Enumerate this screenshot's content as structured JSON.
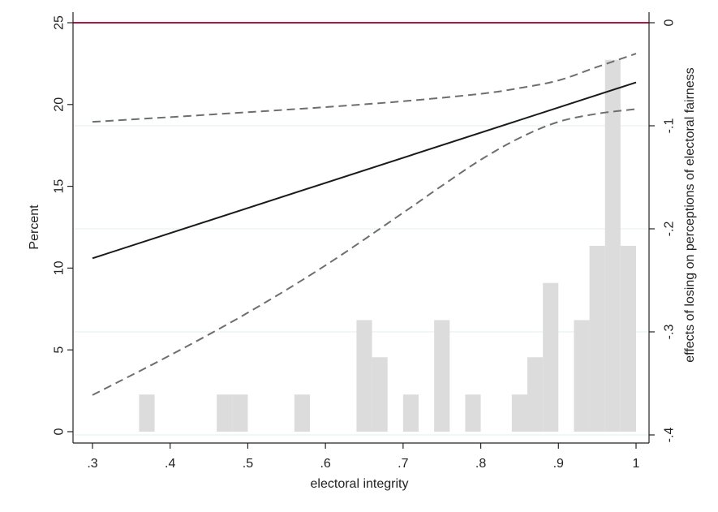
{
  "chart_data": {
    "type": "bar+line",
    "xlabel": "electoral integrity",
    "ylabel_left": "Percent",
    "ylabel_right": "effects of losing on perceptions of electoral fairness",
    "x_ticks": [
      ".3",
      ".4",
      ".5",
      ".6",
      ".7",
      ".8",
      ".9",
      "1"
    ],
    "x_tick_values": [
      0.3,
      0.4,
      0.5,
      0.6,
      0.7,
      0.8,
      0.9,
      1.0
    ],
    "left_ticks": [
      "0",
      "5",
      "10",
      "15",
      "20",
      "25"
    ],
    "left_tick_values": [
      0,
      5,
      10,
      15,
      20,
      25
    ],
    "right_ticks": [
      "0",
      "-.1",
      "-.2",
      "-.3",
      "-.4"
    ],
    "right_tick_values": [
      0,
      -0.1,
      -0.2,
      -0.3,
      -0.4
    ],
    "xlim": [
      0.3,
      1.0
    ],
    "ylim_left": [
      0,
      25
    ],
    "ylim_right": [
      -0.4,
      0
    ],
    "histogram": {
      "axis": "left",
      "bin_width": 0.02,
      "bins": [
        {
          "start": 0.36,
          "value": 2.27
        },
        {
          "start": 0.46,
          "value": 2.27
        },
        {
          "start": 0.48,
          "value": 2.27
        },
        {
          "start": 0.56,
          "value": 2.27
        },
        {
          "start": 0.64,
          "value": 6.82
        },
        {
          "start": 0.66,
          "value": 4.55
        },
        {
          "start": 0.7,
          "value": 2.27
        },
        {
          "start": 0.74,
          "value": 6.82
        },
        {
          "start": 0.78,
          "value": 2.27
        },
        {
          "start": 0.84,
          "value": 2.27
        },
        {
          "start": 0.86,
          "value": 4.55
        },
        {
          "start": 0.88,
          "value": 9.09
        },
        {
          "start": 0.92,
          "value": 6.82
        },
        {
          "start": 0.94,
          "value": 11.36
        },
        {
          "start": 0.96,
          "value": 22.73
        },
        {
          "start": 0.98,
          "value": 11.36
        }
      ]
    },
    "reference_line": {
      "axis": "right",
      "value": 0,
      "color": "#b0173e"
    },
    "estimate": {
      "axis": "right",
      "x": [
        0.3,
        1.0
      ],
      "y": [
        -0.2286,
        -0.0579
      ]
    },
    "ci_upper": {
      "axis": "right",
      "x": [
        0.3,
        0.4,
        0.5,
        0.6,
        0.7,
        0.8,
        0.85,
        0.9,
        0.95,
        1.0
      ],
      "y": [
        -0.0962,
        -0.0916,
        -0.0868,
        -0.0819,
        -0.0762,
        -0.069,
        -0.0634,
        -0.056,
        -0.0429,
        -0.03
      ]
    },
    "ci_lower": {
      "axis": "right",
      "x": [
        0.3,
        0.4,
        0.5,
        0.6,
        0.7,
        0.75,
        0.8,
        0.85,
        0.9,
        0.95,
        1.0
      ],
      "y": [
        -0.3613,
        -0.3227,
        -0.2814,
        -0.2355,
        -0.1844,
        -0.1582,
        -0.133,
        -0.1118,
        -0.0962,
        -0.0883,
        -0.0838
      ]
    },
    "colors": {
      "bars": "#dcdcdc",
      "estimate": "#1a1a1a",
      "ci": "#6e6e6e",
      "grid": "#e3efe8",
      "axis": "#222222"
    }
  }
}
